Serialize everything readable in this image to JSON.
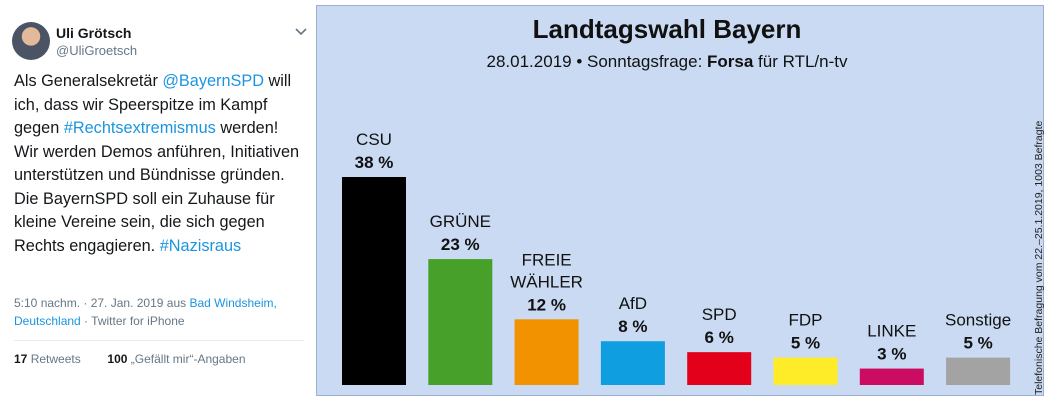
{
  "tweet": {
    "author_name": "Uli Grötsch",
    "author_handle": "@UliGroetsch",
    "text_segments": [
      {
        "text": "Als Generalsekretär ",
        "link": false
      },
      {
        "text": "@BayernSPD",
        "link": true
      },
      {
        "text": " will ich, dass wir Speerspitze im Kampf gegen ",
        "link": false
      },
      {
        "text": "#Rechtsextremismus",
        "link": true
      },
      {
        "text": " werden! Wir werden Demos anführen, Initiativen unterstützen und Bündnisse gründen. Die BayernSPD soll ein Zuhause für kleine Vereine sein, die sich gegen Rechts engagieren. ",
        "link": false
      },
      {
        "text": "#Nazisraus",
        "link": true
      }
    ],
    "time": "5:10 nachm. · 27. Jan. 2019 aus ",
    "location": "Bad Windsheim, Deutschland",
    "source": " · Twitter for iPhone",
    "retweets_count": "17",
    "retweets_label": "Retweets",
    "likes_count": "100",
    "likes_label": "„Gefällt mir“-Angaben",
    "icons": {
      "menu": "chevron-down-icon",
      "avatar": "avatar"
    }
  },
  "chart_data": {
    "type": "bar",
    "title": "Landtagswahl Bayern",
    "subtitle_prefix": "28.01.2019 • Sonntagsfrage: ",
    "subtitle_bold": "Forsa",
    "subtitle_suffix": " für RTL/n-tv",
    "side_note": "Telefonische Befragung vom 22.–25.1.2019, 1003 Befragte",
    "categories": [
      "CSU",
      "GRÜNE",
      "FREIE WÄHLER",
      "AfD",
      "SPD",
      "FDP",
      "LINKE",
      "Sonstige"
    ],
    "values": [
      38,
      23,
      12,
      8,
      6,
      5,
      3,
      5
    ],
    "value_labels": [
      "38 %",
      "23 %",
      "12 %",
      "8 %",
      "6 %",
      "5 %",
      "3 %",
      "5 %"
    ],
    "label_lines": [
      [
        "CSU"
      ],
      [
        "GRÜNE"
      ],
      [
        "FREIE",
        "WÄHLER"
      ],
      [
        "AfD"
      ],
      [
        "SPD"
      ],
      [
        "FDP"
      ],
      [
        "LINKE"
      ],
      [
        "Sonstige"
      ]
    ],
    "colors": [
      "#000000",
      "#46a02a",
      "#f39200",
      "#0f9fe0",
      "#e3001b",
      "#ffec28",
      "#cc0b63",
      "#a3a3a3"
    ],
    "background": "#c9daf2",
    "ylim": [
      0,
      40
    ]
  }
}
